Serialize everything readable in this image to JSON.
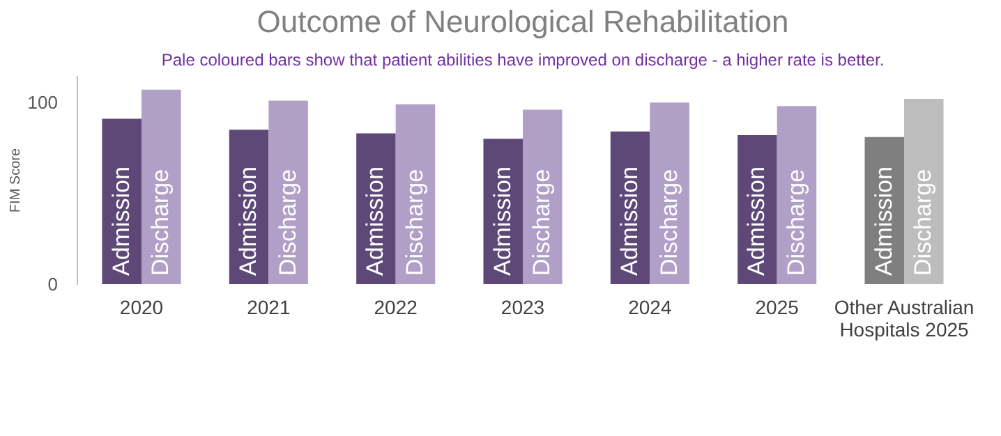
{
  "chart_data": {
    "type": "bar",
    "title": "Outcome of Neurological Rehabilitation",
    "annotations": [
      "Pale coloured bars show that patient abilities have improved on discharge - a higher rate is better."
    ],
    "categories": [
      "2020",
      "2021",
      "2022",
      "2023",
      "2024",
      "2025",
      "Other Australian Hospitals 2025"
    ],
    "ylabel": "FIM Score",
    "ylim": [
      0,
      115
    ],
    "yticks": [
      0,
      100
    ],
    "grid": false,
    "series": [
      {
        "name": "Admission",
        "colors": [
          "#5e4878",
          "#5e4878",
          "#5e4878",
          "#5e4878",
          "#5e4878",
          "#5e4878",
          "#7f7f7f"
        ],
        "values": [
          91,
          85,
          83,
          80,
          84,
          82,
          81
        ]
      },
      {
        "name": "Discharge",
        "colors": [
          "#b09fc6",
          "#b09fc6",
          "#b09fc6",
          "#b09fc6",
          "#b09fc6",
          "#b09fc6",
          "#bdbdbd"
        ],
        "values": [
          107,
          101,
          99,
          96,
          100,
          98,
          102
        ]
      }
    ]
  }
}
